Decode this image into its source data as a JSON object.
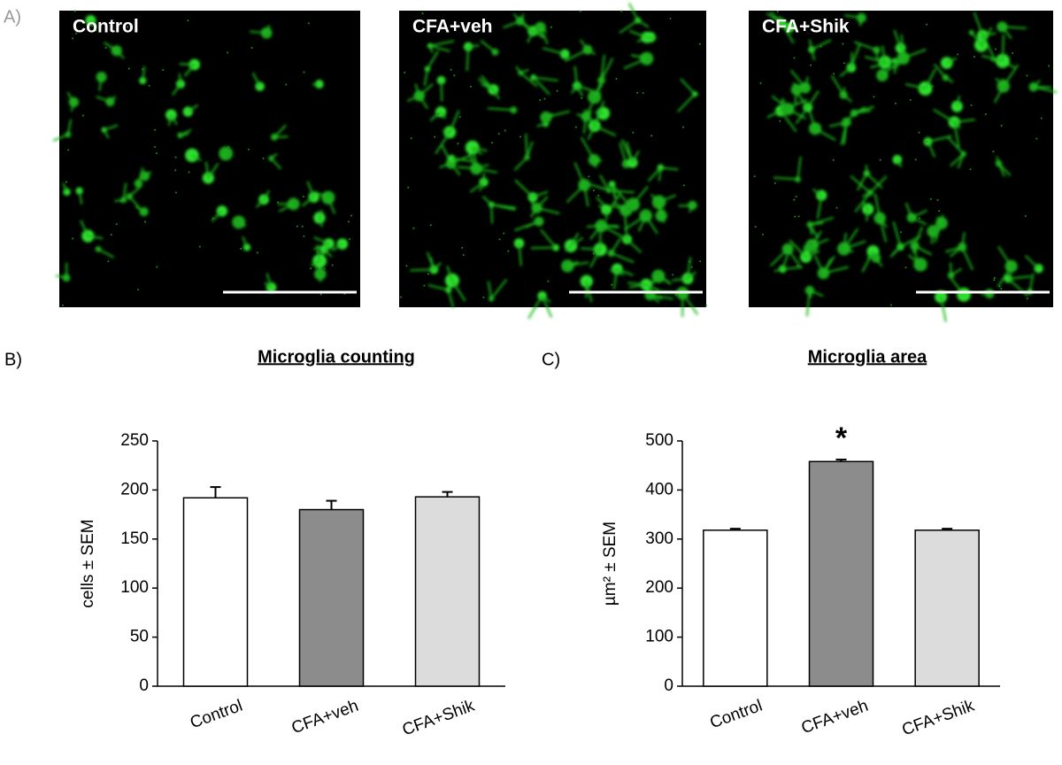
{
  "figure_panel": "A)",
  "images": [
    {
      "label": "Control"
    },
    {
      "label": "CFA+veh"
    },
    {
      "label": "CFA+Shik"
    }
  ],
  "chart_data": [
    {
      "type": "bar",
      "panel": "B)",
      "title": "Microglia counting",
      "y_label": "cells ± SEM",
      "categories": [
        "Control",
        "CFA+veh",
        "CFA+Shik"
      ],
      "values": [
        192,
        180,
        193
      ],
      "errors": [
        11,
        9,
        5
      ],
      "colors": [
        "#ffffff",
        "#8c8c8c",
        "#dcdcdc"
      ],
      "ylim": [
        0,
        250
      ],
      "yticks": [
        0,
        50,
        100,
        150,
        200,
        250
      ]
    },
    {
      "type": "bar",
      "panel": "C)",
      "title": "Microglia area",
      "y_label": "µm² ± SEM",
      "categories": [
        "Control",
        "CFA+veh",
        "CFA+Shik"
      ],
      "values": [
        318,
        458,
        318
      ],
      "errors": [
        3,
        4,
        3
      ],
      "colors": [
        "#ffffff",
        "#8c8c8c",
        "#dcdcdc"
      ],
      "ylim": [
        0,
        500
      ],
      "yticks": [
        0,
        100,
        200,
        300,
        400,
        500
      ],
      "annotations": [
        {
          "text": "*",
          "x": "CFA+veh"
        }
      ]
    }
  ]
}
